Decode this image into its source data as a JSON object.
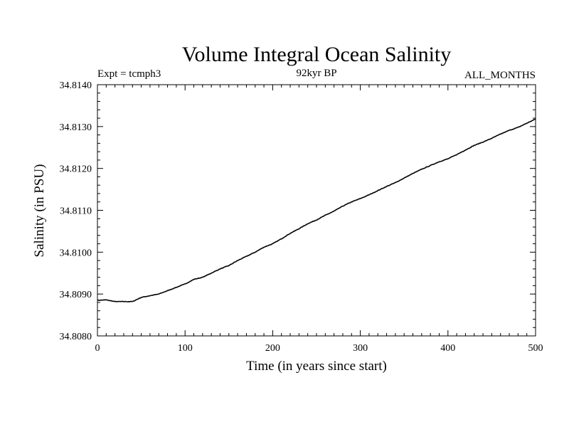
{
  "chart_data": {
    "type": "line",
    "title": "Volume Integral Ocean Salinity",
    "subtitle_left": "Expt = tcmph3",
    "subtitle_center": "92kyr BP",
    "subtitle_right": "ALL_MONTHS",
    "xlabel": "Time (in years since start)",
    "ylabel": "Salinity (in PSU)",
    "xlim": [
      0,
      500
    ],
    "ylim": [
      34.808,
      34.814
    ],
    "xticks": [
      "0",
      "100",
      "200",
      "300",
      "400",
      "500"
    ],
    "yticks": [
      "34.8080",
      "34.8090",
      "34.8100",
      "34.8110",
      "34.8120",
      "34.8130",
      "34.8140"
    ],
    "grid": false,
    "series": [
      {
        "color": "#000000",
        "x": [
          0,
          10,
          20,
          30,
          40,
          50,
          60,
          70,
          80,
          90,
          100,
          110,
          120,
          130,
          140,
          150,
          160,
          170,
          180,
          190,
          200,
          210,
          220,
          230,
          240,
          250,
          260,
          270,
          280,
          290,
          300,
          310,
          320,
          330,
          340,
          350,
          360,
          370,
          380,
          390,
          400,
          410,
          420,
          430,
          440,
          450,
          460,
          470,
          480,
          490,
          500
        ],
        "y": [
          34.80885,
          34.80886,
          34.80882,
          34.80882,
          34.80882,
          34.80892,
          34.80896,
          34.809,
          34.80908,
          34.80916,
          34.80924,
          34.80935,
          34.8094,
          34.8095,
          34.8096,
          34.80968,
          34.8098,
          34.8099,
          34.81,
          34.81012,
          34.8102,
          34.81032,
          34.81045,
          34.81056,
          34.81068,
          34.81077,
          34.81088,
          34.81098,
          34.8111,
          34.8112,
          34.81128,
          34.81137,
          34.81147,
          34.81157,
          34.81166,
          34.81177,
          34.81188,
          34.81198,
          34.81207,
          34.81216,
          34.81223,
          34.81233,
          34.81244,
          34.81255,
          34.81263,
          34.81272,
          34.81282,
          34.81291,
          34.81298,
          34.81308,
          34.81318
        ]
      }
    ]
  }
}
